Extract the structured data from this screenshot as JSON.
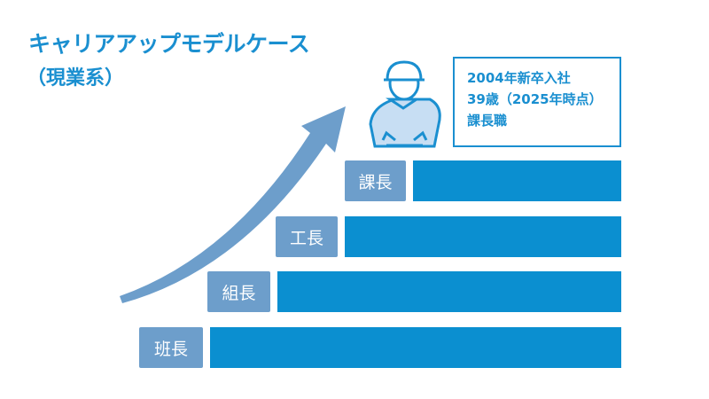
{
  "title": "キャリアアップモデルケース",
  "subtitle": "（現業系）",
  "info": {
    "line1": "2004年新卒入社",
    "line2": "39歳（2025年時点）",
    "line3": "課長職"
  },
  "levels": [
    {
      "label": "課長"
    },
    {
      "label": "工長"
    },
    {
      "label": "組長"
    },
    {
      "label": "班長"
    }
  ],
  "colors": {
    "title": "#1a8fd0",
    "bar": "#0b8fd0",
    "label_bg": "#6d9ecb",
    "arrow": "#6d9ecb"
  },
  "icons": {
    "worker": "worker-helmet-icon",
    "arrow": "growth-arrow"
  }
}
